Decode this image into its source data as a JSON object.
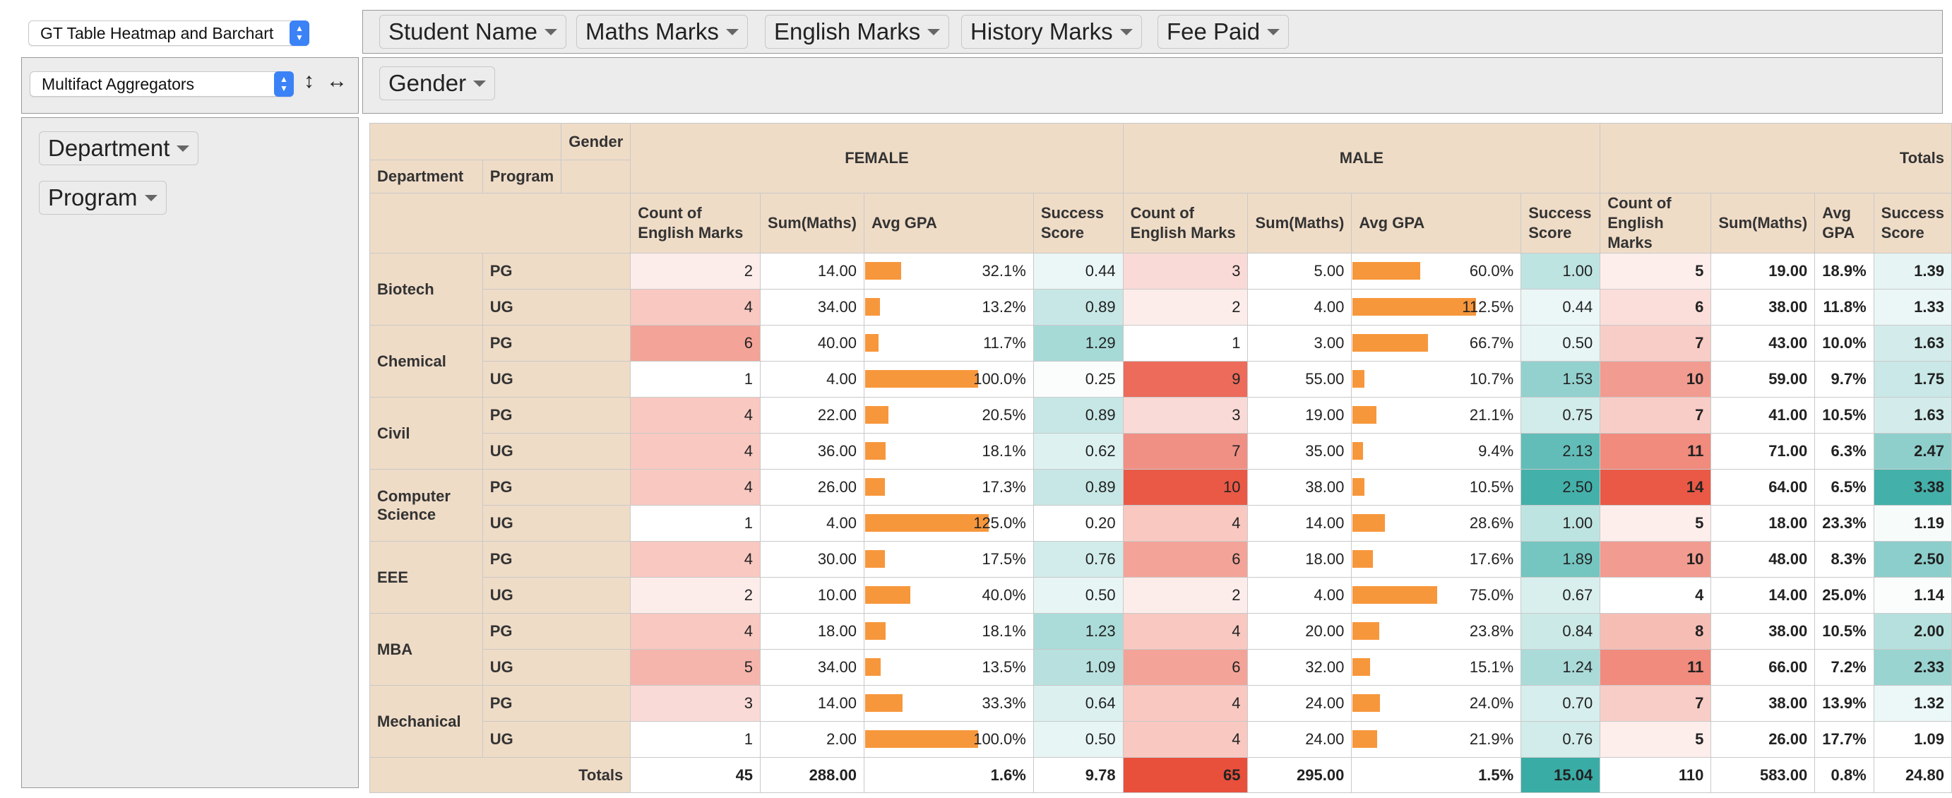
{
  "renderer_select": {
    "value": "GT Table Heatmap and Barchart"
  },
  "aggregator_select": {
    "value": "Multifact Aggregators"
  },
  "sort_rows_icon": "↕",
  "sort_cols_icon": "↔",
  "unused_attrs": [
    "Student Name",
    "Maths Marks",
    "English Marks",
    "History Marks",
    "Fee Paid"
  ],
  "col_attrs": [
    "Gender"
  ],
  "row_attrs": [
    "Department",
    "Program"
  ],
  "pivot": {
    "col_attr_label": "Gender",
    "row_attr_labels": [
      "Department",
      "Program"
    ],
    "groups": [
      "FEMALE",
      "MALE"
    ],
    "totals_label": "Totals",
    "measures": [
      "Count of English Marks",
      "Sum(Maths)",
      "Avg GPA",
      "Success Score"
    ],
    "colors": {
      "header_bg": "#efdcc7",
      "bar": "#f7973c",
      "heat_red": "#e8503c",
      "heat_teal": "#3aaca6"
    },
    "rows": [
      {
        "dept": "Biotech",
        "prog": "PG",
        "f": [
          2,
          "14.00",
          32.1,
          "0.44"
        ],
        "m": [
          3,
          "5.00",
          60.0,
          "1.00"
        ],
        "t": [
          5,
          "19.00",
          18.9,
          "1.39"
        ]
      },
      {
        "dept": "Biotech",
        "prog": "UG",
        "f": [
          4,
          "34.00",
          13.2,
          "0.89"
        ],
        "m": [
          2,
          "4.00",
          112.5,
          "0.44"
        ],
        "t": [
          6,
          "38.00",
          11.8,
          "1.33"
        ]
      },
      {
        "dept": "Chemical",
        "prog": "PG",
        "f": [
          6,
          "40.00",
          11.7,
          "1.29"
        ],
        "m": [
          1,
          "3.00",
          66.7,
          "0.50"
        ],
        "t": [
          7,
          "43.00",
          10.0,
          "1.63"
        ]
      },
      {
        "dept": "Chemical",
        "prog": "UG",
        "f": [
          1,
          "4.00",
          100.0,
          "0.25"
        ],
        "m": [
          9,
          "55.00",
          10.7,
          "1.53"
        ],
        "t": [
          10,
          "59.00",
          9.7,
          "1.75"
        ]
      },
      {
        "dept": "Civil",
        "prog": "PG",
        "f": [
          4,
          "22.00",
          20.5,
          "0.89"
        ],
        "m": [
          3,
          "19.00",
          21.1,
          "0.75"
        ],
        "t": [
          7,
          "41.00",
          10.5,
          "1.63"
        ]
      },
      {
        "dept": "Civil",
        "prog": "UG",
        "f": [
          4,
          "36.00",
          18.1,
          "0.62"
        ],
        "m": [
          7,
          "35.00",
          9.4,
          "2.13"
        ],
        "t": [
          11,
          "71.00",
          6.3,
          "2.47"
        ]
      },
      {
        "dept": "Computer Science",
        "prog": "PG",
        "f": [
          4,
          "26.00",
          17.3,
          "0.89"
        ],
        "m": [
          10,
          "38.00",
          10.5,
          "2.50"
        ],
        "t": [
          14,
          "64.00",
          6.5,
          "3.38"
        ]
      },
      {
        "dept": "Computer Science",
        "prog": "UG",
        "f": [
          1,
          "4.00",
          125.0,
          "0.20"
        ],
        "m": [
          4,
          "14.00",
          28.6,
          "1.00"
        ],
        "t": [
          5,
          "18.00",
          23.3,
          "1.19"
        ]
      },
      {
        "dept": "EEE",
        "prog": "PG",
        "f": [
          4,
          "30.00",
          17.5,
          "0.76"
        ],
        "m": [
          6,
          "18.00",
          17.6,
          "1.89"
        ],
        "t": [
          10,
          "48.00",
          8.3,
          "2.50"
        ]
      },
      {
        "dept": "EEE",
        "prog": "UG",
        "f": [
          2,
          "10.00",
          40.0,
          "0.50"
        ],
        "m": [
          2,
          "4.00",
          75.0,
          "0.67"
        ],
        "t": [
          4,
          "14.00",
          25.0,
          "1.14"
        ]
      },
      {
        "dept": "MBA",
        "prog": "PG",
        "f": [
          4,
          "18.00",
          18.1,
          "1.23"
        ],
        "m": [
          4,
          "20.00",
          23.8,
          "0.84"
        ],
        "t": [
          8,
          "38.00",
          10.5,
          "2.00"
        ]
      },
      {
        "dept": "MBA",
        "prog": "UG",
        "f": [
          5,
          "34.00",
          13.5,
          "1.09"
        ],
        "m": [
          6,
          "32.00",
          15.1,
          "1.24"
        ],
        "t": [
          11,
          "66.00",
          7.2,
          "2.33"
        ]
      },
      {
        "dept": "Mechanical",
        "prog": "PG",
        "f": [
          3,
          "14.00",
          33.3,
          "0.64"
        ],
        "m": [
          4,
          "24.00",
          24.0,
          "0.70"
        ],
        "t": [
          7,
          "38.00",
          13.9,
          "1.32"
        ]
      },
      {
        "dept": "Mechanical",
        "prog": "UG",
        "f": [
          1,
          "2.00",
          100.0,
          "0.50"
        ],
        "m": [
          4,
          "24.00",
          21.9,
          "0.76"
        ],
        "t": [
          5,
          "26.00",
          17.7,
          "1.09"
        ]
      }
    ],
    "totals": {
      "f": [
        45,
        "288.00",
        1.6,
        "9.78"
      ],
      "m": [
        65,
        "295.00",
        1.5,
        "15.04"
      ],
      "t": [
        110,
        "583.00",
        0.8,
        "24.80"
      ]
    }
  }
}
